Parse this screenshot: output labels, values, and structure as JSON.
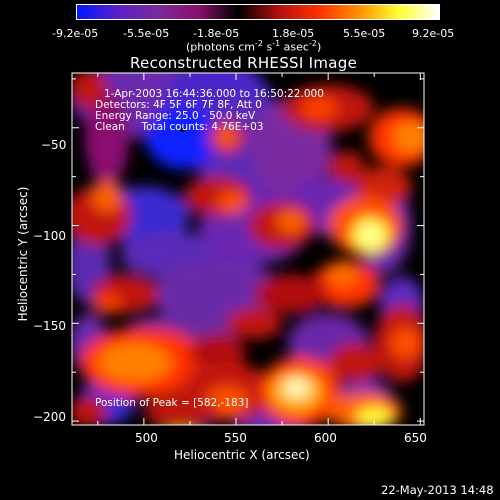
{
  "colorbar": {
    "ticks": [
      "-9.2e-05",
      "-5.5e-05",
      "-1.8e-05",
      "1.8e-05",
      "5.5e-05",
      "9.2e-05"
    ],
    "unit_prefix": "(photons cm",
    "unit_exp1": "-2",
    "unit_mid": " s",
    "unit_exp2": "-1",
    "unit_suffix": " asec",
    "unit_exp3": "-2",
    "unit_close": ")",
    "colors": [
      "#0018ff",
      "#5a20c8",
      "#7a2a9a",
      "#8a1070",
      "#000000",
      "#b01010",
      "#ff3000",
      "#ff9000",
      "#ffff30",
      "#ffffff"
    ]
  },
  "plot": {
    "title": "Reconstructed RHESSI Image",
    "info": [
      "1-Apr-2003 16:44:36.000 to 16:50:22.000",
      "Detectors: 4F 5F 6F 7F 8F, Att 0",
      "Energy Range: 25.0 - 50.0 keV",
      "Clean     Total counts: 4.76E+03"
    ],
    "peak_label": "Position of Peak = [582,-183]",
    "timestamp": "22-May-2013 14:48"
  },
  "chart_data": {
    "type": "heatmap",
    "title": "Reconstructed RHESSI Image",
    "xlabel": "Heliocentric X (arcsec)",
    "ylabel": "Heliocentric Y (arcsec)",
    "xlim": [
      461,
      652
    ],
    "ylim": [
      -202,
      -22
    ],
    "xticks": [
      500,
      550,
      600,
      650
    ],
    "xtick_labels": [
      "500",
      "550",
      "600",
      "650"
    ],
    "yticks": [
      -50,
      -100,
      -150,
      -200
    ],
    "ytick_labels": [
      "−50",
      "−100",
      "−150",
      "−200"
    ],
    "colorbar_range": [
      -9.2e-05,
      9.2e-05
    ],
    "marker": {
      "x": 521,
      "y": -51
    },
    "peak_position": [
      582,
      -183
    ]
  }
}
